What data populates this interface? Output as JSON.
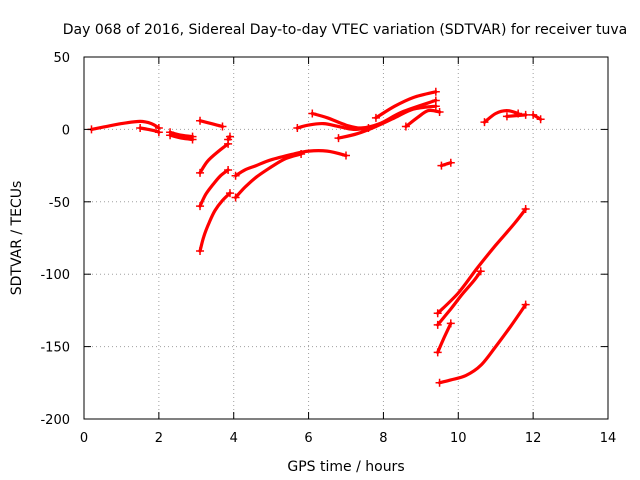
{
  "chart_data": {
    "type": "line",
    "title": "Day 068 of 2016, Sidereal Day-to-day VTEC variation (SDTVAR) for receiver tuva",
    "xlabel": "GPS time / hours",
    "ylabel": "SDTVAR / TECUs",
    "xlim": [
      0,
      14
    ],
    "ylim": [
      -200,
      50
    ],
    "xticks": [
      0,
      2,
      4,
      6,
      8,
      10,
      12,
      14
    ],
    "yticks": [
      -200,
      -150,
      -100,
      -50,
      0,
      50
    ],
    "grid": true,
    "color": "#ff0000",
    "marker": "plus",
    "series": [
      {
        "name": "s1",
        "x": [
          0.2,
          0.5,
          1.0,
          1.5,
          1.8,
          2.0
        ],
        "y": [
          0,
          1.5,
          4,
          5.5,
          4,
          1
        ]
      },
      {
        "name": "s2",
        "x": [
          1.5,
          1.9,
          2.0
        ],
        "y": [
          1,
          -1,
          -2
        ]
      },
      {
        "name": "s3",
        "x": [
          2.3,
          2.6,
          2.9
        ],
        "y": [
          -2,
          -4,
          -5
        ]
      },
      {
        "name": "s4",
        "x": [
          2.3,
          2.6,
          2.9
        ],
        "y": [
          -4,
          -6,
          -7
        ]
      },
      {
        "name": "s5",
        "x": [
          3.1,
          3.4,
          3.7
        ],
        "y": [
          6,
          4,
          2
        ]
      },
      {
        "name": "s6",
        "x": [
          3.9,
          3.85
        ],
        "y": [
          -5,
          -7
        ]
      },
      {
        "name": "s7",
        "x": [
          3.1,
          3.3,
          3.6,
          3.85
        ],
        "y": [
          -30,
          -22,
          -15,
          -10
        ]
      },
      {
        "name": "s8",
        "x": [
          3.1,
          3.25,
          3.45,
          3.65,
          3.85
        ],
        "y": [
          -53,
          -45,
          -38,
          -32,
          -28
        ]
      },
      {
        "name": "s9",
        "x": [
          3.1,
          3.2,
          3.35,
          3.5,
          3.7,
          3.9
        ],
        "y": [
          -84,
          -74,
          -64,
          -56,
          -49,
          -44
        ]
      },
      {
        "name": "s10",
        "x": [
          4.05,
          4.3,
          4.6,
          5.0,
          5.6,
          6.0,
          6.5,
          7.0
        ],
        "y": [
          -32,
          -28,
          -25,
          -21,
          -17,
          -15,
          -15,
          -18
        ]
      },
      {
        "name": "s11",
        "x": [
          4.05,
          4.3,
          4.6,
          5.0,
          5.4,
          5.8
        ],
        "y": [
          -47,
          -40,
          -33,
          -26,
          -20,
          -17
        ]
      },
      {
        "name": "s12",
        "x": [
          5.7,
          6.0,
          6.4,
          6.8,
          7.2,
          7.6
        ],
        "y": [
          1,
          3,
          4,
          2,
          0,
          1
        ]
      },
      {
        "name": "s13",
        "x": [
          6.1,
          6.5,
          7.0,
          7.4,
          7.9,
          8.5,
          9.4
        ],
        "y": [
          11,
          8,
          3,
          1,
          4,
          12,
          20
        ]
      },
      {
        "name": "s14",
        "x": [
          6.8,
          7.3,
          7.8,
          8.3,
          8.8,
          9.4
        ],
        "y": [
          -6,
          -3,
          2,
          8,
          14,
          16
        ]
      },
      {
        "name": "s15",
        "x": [
          7.8,
          8.3,
          8.8,
          9.4
        ],
        "y": [
          8,
          16,
          22,
          26
        ]
      },
      {
        "name": "s16",
        "x": [
          8.6,
          8.9,
          9.2,
          9.5
        ],
        "y": [
          2,
          8,
          13,
          12
        ]
      },
      {
        "name": "s17",
        "x": [
          9.55,
          9.8
        ],
        "y": [
          -25,
          -23
        ]
      },
      {
        "name": "s18",
        "x": [
          10.7,
          11.0,
          11.3,
          11.6
        ],
        "y": [
          5,
          11,
          13,
          11
        ]
      },
      {
        "name": "s19",
        "x": [
          11.3,
          11.8
        ],
        "y": [
          9,
          10
        ]
      },
      {
        "name": "s20",
        "x": [
          12.0,
          12.2
        ],
        "y": [
          10,
          7
        ]
      },
      {
        "name": "s21",
        "x": [
          9.45,
          10.0,
          10.5,
          11.0,
          11.5,
          11.8
        ],
        "y": [
          -127,
          -113,
          -96,
          -80,
          -65,
          -55
        ]
      },
      {
        "name": "s22",
        "x": [
          9.45,
          9.8,
          10.1,
          10.4,
          10.6
        ],
        "y": [
          -135,
          -124,
          -114,
          -105,
          -98
        ]
      },
      {
        "name": "s23",
        "x": [
          9.45,
          9.6,
          9.8
        ],
        "y": [
          -154,
          -145,
          -134
        ]
      },
      {
        "name": "s24",
        "x": [
          9.5,
          9.8,
          10.2,
          10.6,
          11.0,
          11.4,
          11.8
        ],
        "y": [
          -175,
          -173,
          -170,
          -163,
          -150,
          -136,
          -121
        ]
      }
    ]
  }
}
